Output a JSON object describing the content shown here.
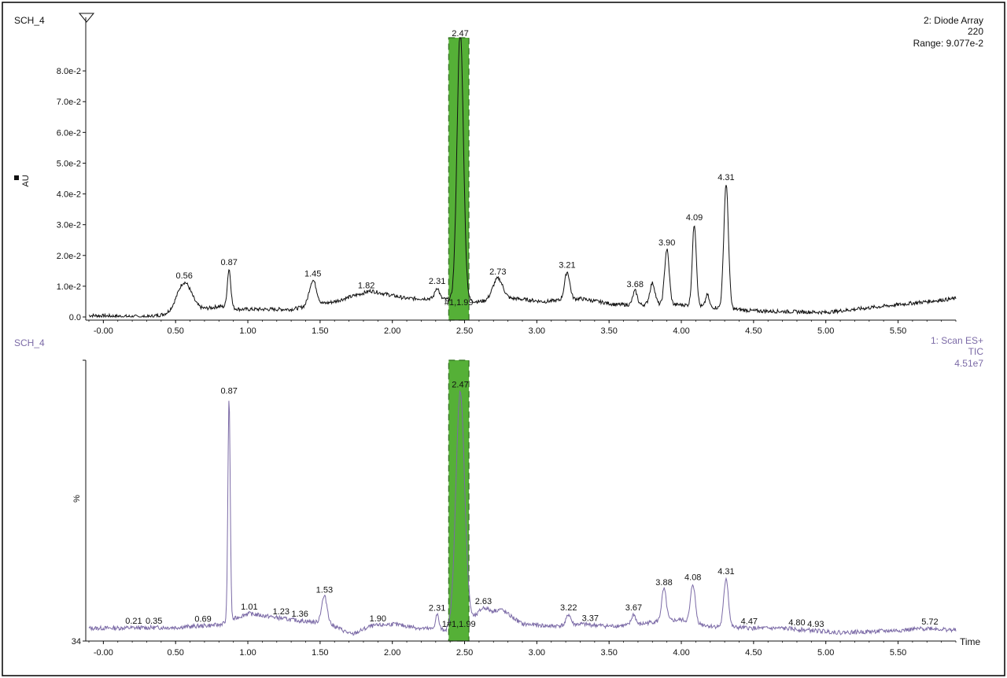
{
  "colors": {
    "background": "#ffffff",
    "frame": "#000000",
    "trace_top": "#111111",
    "trace_bottom": "#7b6aa6",
    "label_bottom": "#7b6aa6",
    "highlight_fill": "#55b037",
    "highlight_stroke": "#2f6f1c"
  },
  "chart_data": [
    {
      "type": "line",
      "sample_name": "SCH_4",
      "channel": "2: Diode Array",
      "wavelength": "220",
      "range_label": "Range: 9.077e-2",
      "ylabel": "AU",
      "xlim": [
        -0.1,
        5.9
      ],
      "ylim": [
        0.0,
        0.09077
      ],
      "y_ticks": [
        {
          "value": 0.0,
          "label": "0.0"
        },
        {
          "value": 0.01,
          "label": "1.0e-2"
        },
        {
          "value": 0.02,
          "label": "2.0e-2"
        },
        {
          "value": 0.03,
          "label": "3.0e-2"
        },
        {
          "value": 0.04,
          "label": "4.0e-2"
        },
        {
          "value": 0.05,
          "label": "5.0e-2"
        },
        {
          "value": 0.06,
          "label": "6.0e-2"
        },
        {
          "value": 0.07,
          "label": "7.0e-2"
        },
        {
          "value": 0.08,
          "label": "8.0e-2"
        }
      ],
      "x_ticks": [
        {
          "value": 0.0,
          "label": "-0.00"
        },
        {
          "value": 0.5,
          "label": "0.50"
        },
        {
          "value": 1.0,
          "label": "1.00"
        },
        {
          "value": 1.5,
          "label": "1.50"
        },
        {
          "value": 2.0,
          "label": "2.00"
        },
        {
          "value": 2.5,
          "label": "2.50"
        },
        {
          "value": 3.0,
          "label": "3.00"
        },
        {
          "value": 3.5,
          "label": "3.50"
        },
        {
          "value": 4.0,
          "label": "4.00"
        },
        {
          "value": 4.5,
          "label": "4.50"
        },
        {
          "value": 5.0,
          "label": "5.00"
        },
        {
          "value": 5.5,
          "label": "5.50"
        }
      ],
      "baseline": [
        [
          -0.1,
          0.0005
        ],
        [
          0.3,
          0.0
        ],
        [
          0.45,
          0.001
        ],
        [
          0.75,
          0.003
        ],
        [
          0.8,
          0.0035
        ],
        [
          0.95,
          0.0025
        ],
        [
          1.3,
          0.0025
        ],
        [
          1.6,
          0.005
        ],
        [
          1.85,
          0.0085
        ],
        [
          2.1,
          0.006
        ],
        [
          2.3,
          0.006
        ],
        [
          2.6,
          0.005
        ],
        [
          2.85,
          0.006
        ],
        [
          3.05,
          0.005
        ],
        [
          3.3,
          0.006
        ],
        [
          3.55,
          0.004
        ],
        [
          3.8,
          0.004
        ],
        [
          4.0,
          0.004
        ],
        [
          4.5,
          0.002
        ],
        [
          5.0,
          0.0015
        ],
        [
          5.3,
          0.003
        ],
        [
          5.9,
          0.006
        ]
      ],
      "peaks": [
        {
          "rt": 0.56,
          "height": 0.0095,
          "width": 0.05
        },
        {
          "rt": 0.87,
          "height": 0.0125,
          "width": 0.012
        },
        {
          "rt": 1.45,
          "height": 0.0082,
          "width": 0.025
        },
        {
          "rt": 2.31,
          "height": 0.0035,
          "width": 0.015
        },
        {
          "rt": 2.47,
          "height": 0.088,
          "width": 0.022
        },
        {
          "rt": 2.73,
          "height": 0.007,
          "width": 0.035
        },
        {
          "rt": 3.21,
          "height": 0.009,
          "width": 0.018
        },
        {
          "rt": 3.68,
          "height": 0.0045,
          "width": 0.015
        },
        {
          "rt": 3.8,
          "height": 0.007,
          "width": 0.018
        },
        {
          "rt": 3.9,
          "height": 0.018,
          "width": 0.016
        },
        {
          "rt": 4.09,
          "height": 0.0265,
          "width": 0.014
        },
        {
          "rt": 4.18,
          "height": 0.004,
          "width": 0.012
        },
        {
          "rt": 4.31,
          "height": 0.0405,
          "width": 0.016
        }
      ],
      "noise": 0.0006,
      "peak_labels": [
        {
          "rt": 0.56,
          "label": "0.56"
        },
        {
          "rt": 0.87,
          "label": "0.87"
        },
        {
          "rt": 1.45,
          "label": "1.45"
        },
        {
          "rt": 1.82,
          "label": "1.82"
        },
        {
          "rt": 2.31,
          "label": "2.31"
        },
        {
          "rt": 2.47,
          "label": "2.47"
        },
        {
          "rt": 2.73,
          "label": "2.73"
        },
        {
          "rt": 3.21,
          "label": "3.21"
        },
        {
          "rt": 3.68,
          "label": "3.68"
        },
        {
          "rt": 3.9,
          "label": "3.90"
        },
        {
          "rt": 4.09,
          "label": "4.09"
        },
        {
          "rt": 4.31,
          "label": "4.31"
        }
      ],
      "highlight": {
        "start": 2.39,
        "end": 2.53,
        "label": "#1,1.99"
      }
    },
    {
      "type": "line",
      "sample_name": "SCH_4",
      "channel": "1: Scan ES+",
      "detector": "TIC",
      "intensity_label": "4.51e7",
      "ylabel": "%",
      "xlabel": "Time",
      "xlim": [
        -0.1,
        5.9
      ],
      "ylim": [
        34,
        100
      ],
      "y_ticks": [
        {
          "value": 34,
          "label": "34"
        }
      ],
      "x_ticks": [
        {
          "value": 0.0,
          "label": "-0.00"
        },
        {
          "value": 0.5,
          "label": "0.50"
        },
        {
          "value": 1.0,
          "label": "1.00"
        },
        {
          "value": 1.5,
          "label": "1.50"
        },
        {
          "value": 2.0,
          "label": "2.00"
        },
        {
          "value": 2.5,
          "label": "2.50"
        },
        {
          "value": 3.0,
          "label": "3.00"
        },
        {
          "value": 3.5,
          "label": "3.50"
        },
        {
          "value": 4.0,
          "label": "4.00"
        },
        {
          "value": 4.5,
          "label": "4.50"
        },
        {
          "value": 5.0,
          "label": "5.00"
        },
        {
          "value": 5.5,
          "label": "5.50"
        }
      ],
      "baseline": [
        [
          -0.1,
          37.0
        ],
        [
          0.5,
          37.2
        ],
        [
          0.8,
          37.8
        ],
        [
          1.0,
          40.5
        ],
        [
          1.3,
          39.0
        ],
        [
          1.45,
          38.5
        ],
        [
          1.6,
          37.5
        ],
        [
          1.72,
          35.5
        ],
        [
          1.85,
          37.5
        ],
        [
          2.0,
          38.0
        ],
        [
          2.2,
          37.0
        ],
        [
          2.4,
          36.5
        ],
        [
          2.6,
          40.0
        ],
        [
          2.75,
          41.5
        ],
        [
          2.9,
          38.0
        ],
        [
          3.1,
          37.5
        ],
        [
          3.3,
          38.0
        ],
        [
          3.5,
          37.5
        ],
        [
          3.7,
          37.8
        ],
        [
          3.8,
          38.5
        ],
        [
          4.0,
          39.0
        ],
        [
          4.2,
          37.5
        ],
        [
          4.5,
          37.0
        ],
        [
          4.7,
          37.0
        ],
        [
          4.9,
          36.5
        ],
        [
          5.1,
          36.0
        ],
        [
          5.3,
          36.2
        ],
        [
          5.5,
          36.5
        ],
        [
          5.72,
          37.0
        ],
        [
          5.9,
          36.5
        ]
      ],
      "peaks": [
        {
          "rt": 0.87,
          "height": 52.5,
          "width": 0.008
        },
        {
          "rt": 1.53,
          "height": 6.5,
          "width": 0.02
        },
        {
          "rt": 2.31,
          "height": 3.5,
          "width": 0.012
        },
        {
          "rt": 2.47,
          "height": 55.0,
          "width": 0.03
        },
        {
          "rt": 2.63,
          "height": 1.5,
          "width": 0.03
        },
        {
          "rt": 3.22,
          "height": 2.5,
          "width": 0.015
        },
        {
          "rt": 3.67,
          "height": 2.5,
          "width": 0.015
        },
        {
          "rt": 3.88,
          "height": 7.5,
          "width": 0.016
        },
        {
          "rt": 4.08,
          "height": 9.0,
          "width": 0.016
        },
        {
          "rt": 4.31,
          "height": 11.5,
          "width": 0.016
        }
      ],
      "noise": 0.5,
      "peak_labels": [
        {
          "rt": 0.21,
          "label": "0.21"
        },
        {
          "rt": 0.35,
          "label": "0.35"
        },
        {
          "rt": 0.69,
          "label": "0.69"
        },
        {
          "rt": 0.87,
          "label": "0.87"
        },
        {
          "rt": 1.01,
          "label": "1.01"
        },
        {
          "rt": 1.23,
          "label": "1.23"
        },
        {
          "rt": 1.36,
          "label": "1.36"
        },
        {
          "rt": 1.53,
          "label": "1.53"
        },
        {
          "rt": 1.9,
          "label": "1.90"
        },
        {
          "rt": 2.31,
          "label": "2.31"
        },
        {
          "rt": 2.47,
          "label": "2.47"
        },
        {
          "rt": 2.63,
          "label": "2.63"
        },
        {
          "rt": 3.22,
          "label": "3.22"
        },
        {
          "rt": 3.37,
          "label": "3.37"
        },
        {
          "rt": 3.67,
          "label": "3.67"
        },
        {
          "rt": 3.88,
          "label": "3.88"
        },
        {
          "rt": 4.08,
          "label": "4.08"
        },
        {
          "rt": 4.31,
          "label": "4.31"
        },
        {
          "rt": 4.47,
          "label": "4.47"
        },
        {
          "rt": 4.8,
          "label": "4.80"
        },
        {
          "rt": 4.93,
          "label": "4.93"
        },
        {
          "rt": 5.72,
          "label": "5.72"
        }
      ],
      "highlight": {
        "start": 2.39,
        "end": 2.53,
        "label": "1#1,1.99"
      }
    }
  ]
}
